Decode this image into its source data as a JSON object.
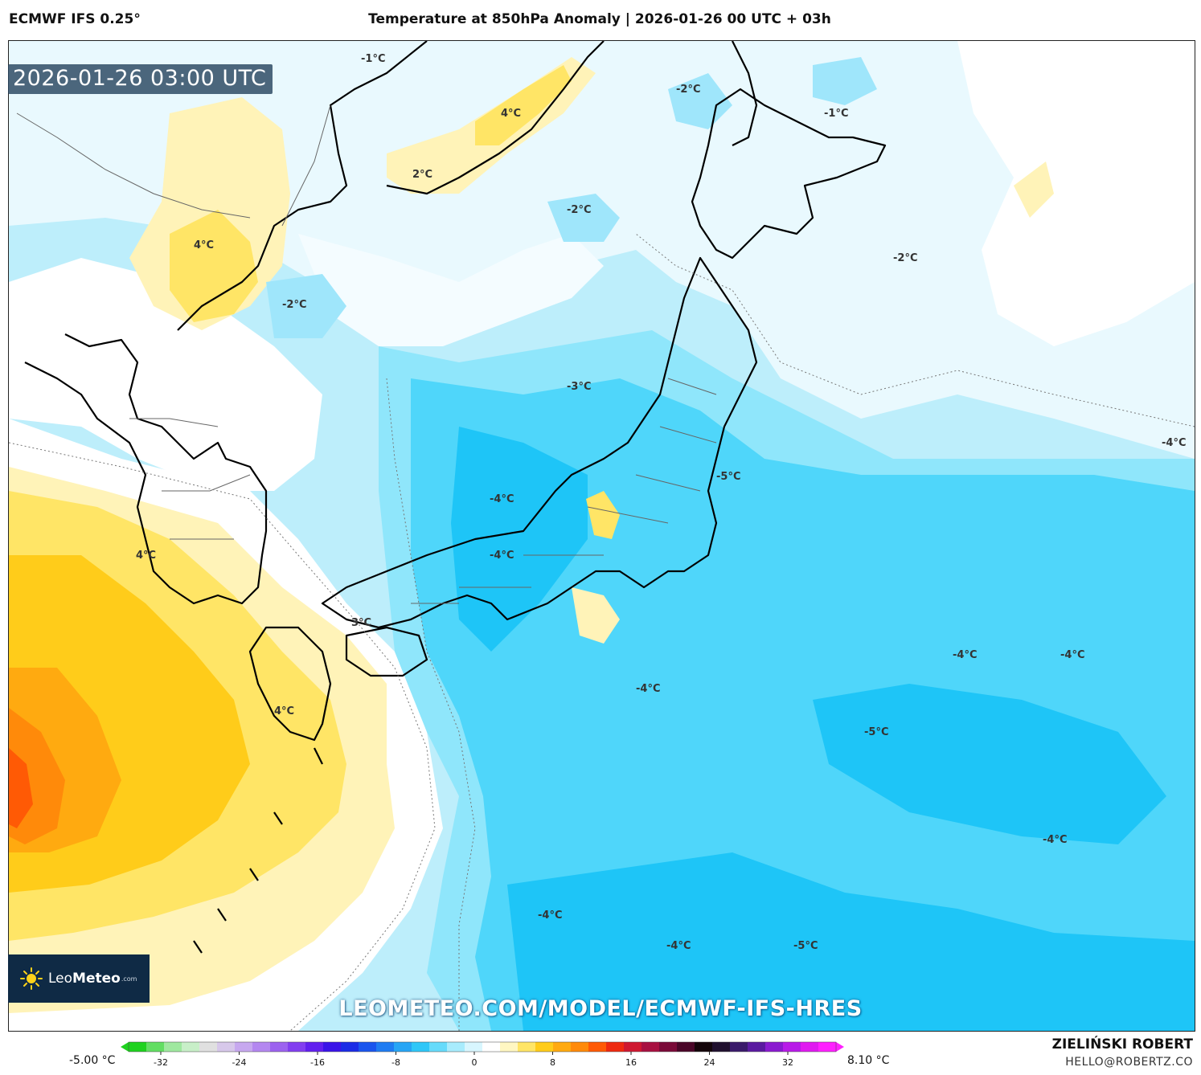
{
  "header": {
    "model": "ECMWF IFS 0.25°",
    "title": "Temperature at 850hPa Anomaly | 2026-01-26 00 UTC + 03h"
  },
  "valid_time": "2026-01-26 03:00 UTC",
  "contour_labels": {
    "l1": "-1°C",
    "l2": "4°C",
    "l3": "-2°C",
    "l4": "-1°C",
    "l5": "2°C",
    "l6": "-2°C",
    "l7": "4°C",
    "l8": "-2°C",
    "l9": "-2°C",
    "l10": "-3°C",
    "l11": "-4°C",
    "l12": "-5°C",
    "l13": "-4°C",
    "l14": "-4°C",
    "l15": "4°C",
    "l16": "3°C",
    "l17": "4°C",
    "l18": "-4°C",
    "l19": "-4°C",
    "l20": "-4°C",
    "l21": "-5°C",
    "l22": "-4°C",
    "l23": "-4°C",
    "l24": "-4°C",
    "l25": "-5°C"
  },
  "logo": {
    "brand_light": "Leo",
    "brand_bold": "Meteo",
    "domain": ".com"
  },
  "watermark": "LEOMETEO.COM/MODEL/ECMWF-IFS-HRES",
  "colorbar": {
    "min_label": "-5.00 °C",
    "max_label": "8.10 °C",
    "ticks": [
      "-32",
      "-24",
      "-16",
      "-8",
      "0",
      "8",
      "16",
      "24",
      "32"
    ],
    "colors": [
      "#1fd21f",
      "#62de62",
      "#9fe89f",
      "#c8efc8",
      "#e0e0e0",
      "#d7c8ea",
      "#c7a8ef",
      "#b487f0",
      "#9c62ef",
      "#823ef0",
      "#6220ef",
      "#3a14e8",
      "#1b2ce6",
      "#1a55ee",
      "#1f7cf2",
      "#27a5f5",
      "#2fc7f8",
      "#66dbfb",
      "#a8ecfd",
      "#d8f6fe",
      "#ffffff",
      "#fff7c2",
      "#ffe566",
      "#ffcc1a",
      "#ffaa10",
      "#ff8a0a",
      "#ff5a05",
      "#ee2a10",
      "#cf1830",
      "#a81040",
      "#7a0a38",
      "#4a0628",
      "#14050a",
      "#20102e",
      "#3a1a6a",
      "#5a1aa0",
      "#8a1ad0",
      "#b81ae8",
      "#e01af0",
      "#ff20ff"
    ]
  },
  "author": "ZIELIŃSKI ROBERT",
  "email": "HELLO@ROBERTZ.CO"
}
